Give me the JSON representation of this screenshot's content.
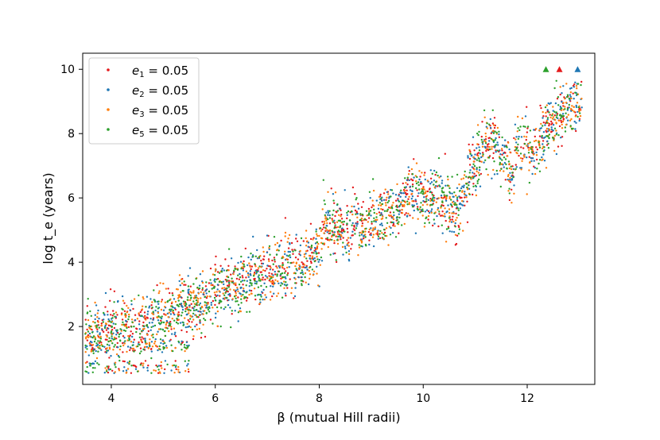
{
  "chart_data": {
    "type": "scatter",
    "xlabel": "β (mutual Hill radii)",
    "ylabel": "log t_e (years)",
    "xlim": [
      3.45,
      13.3
    ],
    "ylim": [
      0.2,
      10.5
    ],
    "x_ticks": [
      4,
      6,
      8,
      10,
      12
    ],
    "y_ticks": [
      2,
      4,
      6,
      8,
      10
    ],
    "grid": false,
    "legend_placement": "top-left",
    "series": [
      {
        "name": "e₁ = 0.05",
        "label_main": "e",
        "label_sub": "1",
        "label_rest": " = 0.05",
        "color": "#e41a1c",
        "marker": "point",
        "upper_limit": {
          "x": 12.62,
          "y": 10.0
        }
      },
      {
        "name": "e₂ = 0.05",
        "label_main": "e",
        "label_sub": "2",
        "label_rest": " = 0.05",
        "color": "#1f77b4",
        "marker": "point",
        "upper_limit": {
          "x": 12.97,
          "y": 10.0
        }
      },
      {
        "name": "e₃ = 0.05",
        "label_main": "e",
        "label_sub": "3",
        "label_rest": " = 0.05",
        "color": "#ff7f0e",
        "marker": "point",
        "upper_limit": null
      },
      {
        "name": "e₅ = 0.05",
        "label_main": "e",
        "label_sub": "5",
        "label_rest": " = 0.05",
        "color": "#2ca02c",
        "marker": "point",
        "upper_limit": {
          "x": 12.36,
          "y": 10.0
        }
      }
    ],
    "trend": [
      [
        3.5,
        1.75
      ],
      [
        4.0,
        1.95
      ],
      [
        4.5,
        2.1
      ],
      [
        5.0,
        2.3
      ],
      [
        5.5,
        2.65
      ],
      [
        6.0,
        3.0
      ],
      [
        6.5,
        3.35
      ],
      [
        7.0,
        3.7
      ],
      [
        7.5,
        3.95
      ],
      [
        8.0,
        4.3
      ],
      [
        8.1,
        5.3
      ],
      [
        8.5,
        5.0
      ],
      [
        9.0,
        5.2
      ],
      [
        9.5,
        5.6
      ],
      [
        9.7,
        6.2
      ],
      [
        10.0,
        6.0
      ],
      [
        10.4,
        6.1
      ],
      [
        10.6,
        5.5
      ],
      [
        11.0,
        7.0
      ],
      [
        11.3,
        7.8
      ],
      [
        11.6,
        7.0
      ],
      [
        11.75,
        6.5
      ],
      [
        11.8,
        7.8
      ],
      [
        12.0,
        7.5
      ],
      [
        12.2,
        7.5
      ],
      [
        12.4,
        8.2
      ],
      [
        12.7,
        8.6
      ],
      [
        13.0,
        9.0
      ]
    ],
    "spread": 0.45,
    "low_cluster": {
      "x_range": [
        3.5,
        5.5
      ],
      "y_range": [
        0.55,
        0.95
      ]
    },
    "points_per_series": 700
  }
}
